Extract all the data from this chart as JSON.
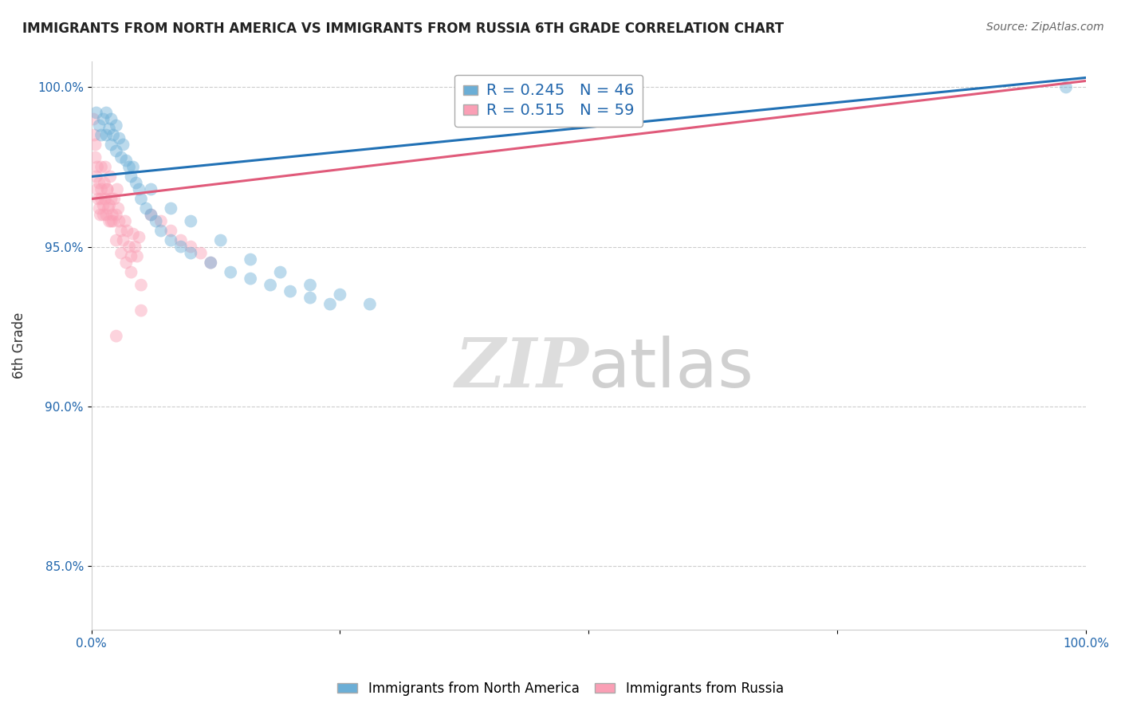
{
  "title": "IMMIGRANTS FROM NORTH AMERICA VS IMMIGRANTS FROM RUSSIA 6TH GRADE CORRELATION CHART",
  "source": "Source: ZipAtlas.com",
  "ylabel": "6th Grade",
  "xlim": [
    0.0,
    1.0
  ],
  "ylim": [
    0.83,
    1.008
  ],
  "yticks": [
    0.85,
    0.9,
    0.95,
    1.0
  ],
  "ytick_labels": [
    "85.0%",
    "90.0%",
    "95.0%",
    "100.0%"
  ],
  "xticks": [
    0.0,
    0.25,
    0.5,
    0.75,
    1.0
  ],
  "xtick_labels": [
    "0.0%",
    "",
    "",
    "",
    "100.0%"
  ],
  "blue_color": "#6baed6",
  "pink_color": "#fa9fb5",
  "blue_line_color": "#2171b5",
  "pink_line_color": "#e05a7a",
  "blue_label": "Immigrants from North America",
  "pink_label": "Immigrants from Russia",
  "R_blue": 0.245,
  "N_blue": 46,
  "R_pink": 0.515,
  "N_pink": 59,
  "blue_scatter_x": [
    0.005,
    0.008,
    0.01,
    0.012,
    0.015,
    0.015,
    0.018,
    0.02,
    0.02,
    0.022,
    0.025,
    0.025,
    0.028,
    0.03,
    0.032,
    0.035,
    0.038,
    0.04,
    0.042,
    0.045,
    0.048,
    0.05,
    0.055,
    0.06,
    0.065,
    0.07,
    0.08,
    0.09,
    0.1,
    0.12,
    0.14,
    0.16,
    0.18,
    0.2,
    0.22,
    0.24,
    0.06,
    0.08,
    0.1,
    0.13,
    0.16,
    0.19,
    0.22,
    0.25,
    0.28,
    0.98
  ],
  "blue_scatter_y": [
    0.992,
    0.988,
    0.985,
    0.99,
    0.985,
    0.992,
    0.987,
    0.982,
    0.99,
    0.985,
    0.98,
    0.988,
    0.984,
    0.978,
    0.982,
    0.977,
    0.975,
    0.972,
    0.975,
    0.97,
    0.968,
    0.965,
    0.962,
    0.96,
    0.958,
    0.955,
    0.952,
    0.95,
    0.948,
    0.945,
    0.942,
    0.94,
    0.938,
    0.936,
    0.934,
    0.932,
    0.968,
    0.962,
    0.958,
    0.952,
    0.946,
    0.942,
    0.938,
    0.935,
    0.932,
    1.0
  ],
  "pink_scatter_x": [
    0.002,
    0.003,
    0.004,
    0.005,
    0.006,
    0.007,
    0.008,
    0.009,
    0.01,
    0.01,
    0.012,
    0.013,
    0.014,
    0.015,
    0.016,
    0.017,
    0.018,
    0.019,
    0.02,
    0.021,
    0.022,
    0.023,
    0.025,
    0.026,
    0.027,
    0.028,
    0.03,
    0.032,
    0.034,
    0.036,
    0.038,
    0.04,
    0.042,
    0.044,
    0.046,
    0.048,
    0.004,
    0.006,
    0.008,
    0.01,
    0.012,
    0.014,
    0.016,
    0.018,
    0.02,
    0.025,
    0.03,
    0.035,
    0.04,
    0.05,
    0.06,
    0.07,
    0.08,
    0.09,
    0.1,
    0.11,
    0.12,
    0.05,
    0.025
  ],
  "pink_scatter_y": [
    0.99,
    0.985,
    0.978,
    0.972,
    0.968,
    0.965,
    0.962,
    0.96,
    0.975,
    0.968,
    0.963,
    0.97,
    0.965,
    0.96,
    0.968,
    0.962,
    0.958,
    0.972,
    0.965,
    0.96,
    0.958,
    0.965,
    0.96,
    0.968,
    0.962,
    0.958,
    0.955,
    0.952,
    0.958,
    0.955,
    0.95,
    0.947,
    0.954,
    0.95,
    0.947,
    0.953,
    0.982,
    0.975,
    0.97,
    0.965,
    0.96,
    0.975,
    0.968,
    0.963,
    0.958,
    0.952,
    0.948,
    0.945,
    0.942,
    0.938,
    0.96,
    0.958,
    0.955,
    0.952,
    0.95,
    0.948,
    0.945,
    0.93,
    0.922
  ],
  "watermark_zip": "ZIP",
  "watermark_atlas": "atlas",
  "marker_size": 130,
  "marker_alpha": 0.45,
  "grid_color": "#cccccc",
  "background_color": "#ffffff",
  "trend_blue_x0": 0.0,
  "trend_blue_y0": 0.972,
  "trend_blue_x1": 1.0,
  "trend_blue_y1": 1.003,
  "trend_pink_x0": 0.0,
  "trend_pink_y0": 0.965,
  "trend_pink_x1": 1.0,
  "trend_pink_y1": 1.002
}
